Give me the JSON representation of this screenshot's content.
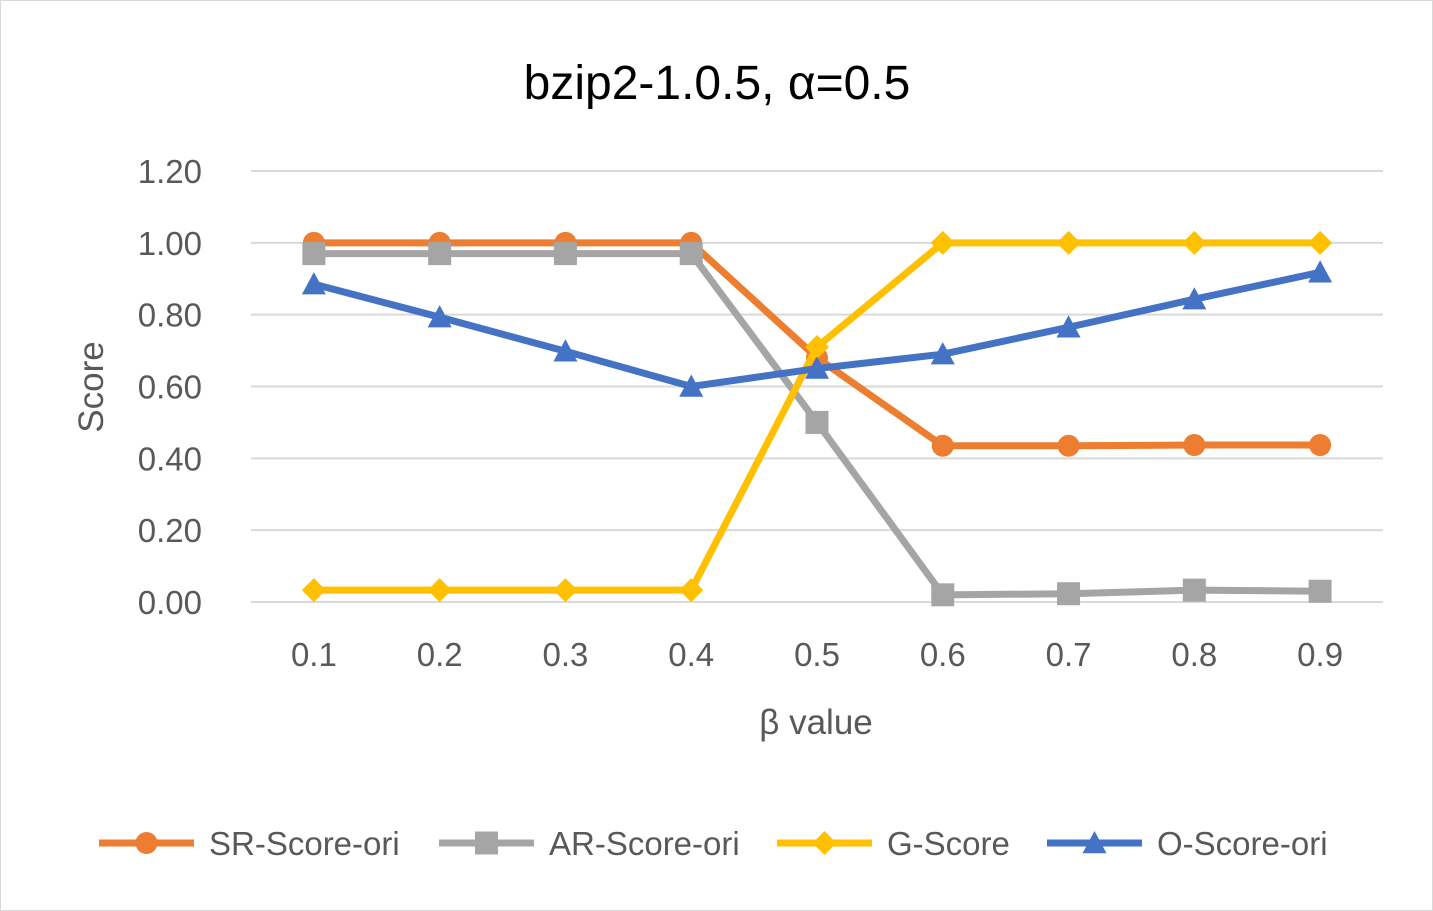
{
  "chart_data": {
    "type": "line",
    "title": "bzip2-1.0.5, α=0.5",
    "xlabel": "β value",
    "ylabel": "Score",
    "categories": [
      "0.1",
      "0.2",
      "0.3",
      "0.4",
      "0.5",
      "0.6",
      "0.7",
      "0.8",
      "0.9"
    ],
    "ylim": [
      0,
      1.2
    ],
    "yticks": [
      "0.00",
      "0.20",
      "0.40",
      "0.60",
      "0.80",
      "1.00",
      "1.20"
    ],
    "ytick_values": [
      0,
      0.2,
      0.4,
      0.6,
      0.8,
      1.0,
      1.2
    ],
    "grid": true,
    "legend_position": "bottom",
    "series": [
      {
        "name": "SR-Score-ori",
        "color": "#ED7D31",
        "marker": "circle",
        "values": [
          1.0,
          1.0,
          1.0,
          1.0,
          0.68,
          0.435,
          0.435,
          0.437,
          0.437
        ]
      },
      {
        "name": "AR-Score-ori",
        "color": "#A5A5A5",
        "marker": "square",
        "values": [
          0.97,
          0.97,
          0.97,
          0.97,
          0.5,
          0.02,
          0.023,
          0.033,
          0.03
        ]
      },
      {
        "name": "G-Score",
        "color": "#FFC000",
        "marker": "diamond",
        "values": [
          0.033,
          0.033,
          0.033,
          0.033,
          0.71,
          1.0,
          1.0,
          1.0,
          1.0
        ]
      },
      {
        "name": "O-Score-ori",
        "color": "#4472C4",
        "marker": "triangle",
        "values": [
          0.885,
          0.793,
          0.698,
          0.6,
          0.65,
          0.69,
          0.765,
          0.843,
          0.918
        ]
      }
    ]
  }
}
